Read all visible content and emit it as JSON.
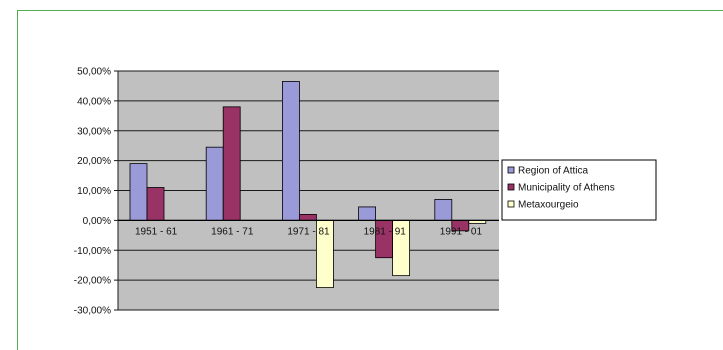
{
  "chart_data": {
    "type": "bar",
    "categories": [
      "1951 - 61",
      "1961 - 71",
      "1971 - 81",
      "1981 - 91",
      "1991 - 01"
    ],
    "series": [
      {
        "name": "Region of Attica",
        "values": [
          19.0,
          24.5,
          46.5,
          4.5,
          7.0
        ],
        "color": "#9a9ad8"
      },
      {
        "name": "Municipality of Athens",
        "values": [
          11.0,
          38.0,
          2.0,
          -12.5,
          -3.5
        ],
        "color": "#993366"
      },
      {
        "name": "Metaxourgeio",
        "values": [
          null,
          null,
          -22.5,
          -18.5,
          -1.0
        ],
        "color": "#ffffcc"
      }
    ],
    "y_ticks": [
      "50,00%",
      "40,00%",
      "30,00%",
      "20,00%",
      "10,00%",
      "0,00%",
      "-10,00%",
      "-20,00%",
      "-30,00%"
    ],
    "ylim": [
      -30,
      50
    ],
    "grid": true,
    "legend_position": "right",
    "plot_background": "#c0c0c0",
    "frame_color": "#4fae4f"
  }
}
